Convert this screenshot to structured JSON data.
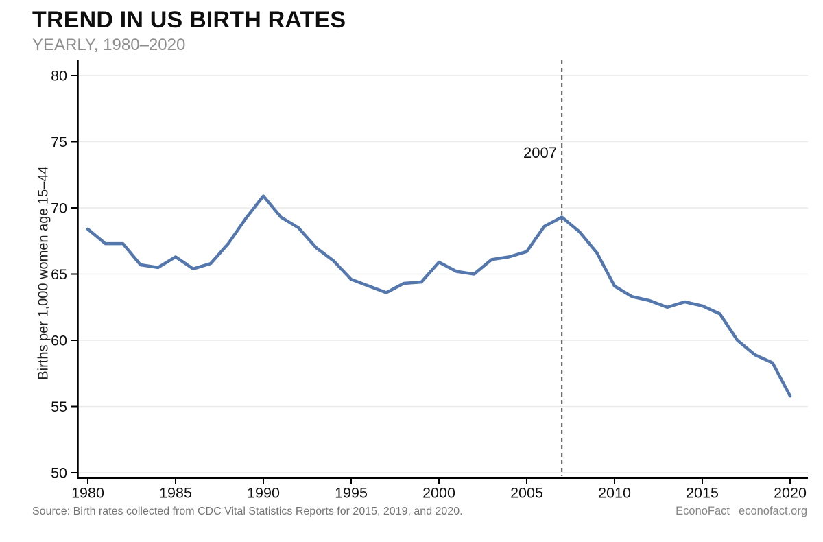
{
  "header": {
    "title": "TREND IN US BIRTH RATES",
    "subtitle": "YEARLY, 1980–2020"
  },
  "footer": {
    "source": "Source: Birth rates collected from CDC Vital Statistics Reports for 2015, 2019, and 2020.",
    "brand": "EconoFact",
    "url": "econofact.org"
  },
  "chart_data": {
    "type": "line",
    "title": "TREND IN US BIRTH RATES",
    "subtitle": "YEARLY, 1980–2020",
    "xlabel": "",
    "ylabel": "Births per 1,000 women age 15–44",
    "x": [
      1980,
      1981,
      1982,
      1983,
      1984,
      1985,
      1986,
      1987,
      1988,
      1989,
      1990,
      1991,
      1992,
      1993,
      1994,
      1995,
      1996,
      1997,
      1998,
      1999,
      2000,
      2001,
      2002,
      2003,
      2004,
      2005,
      2006,
      2007,
      2008,
      2009,
      2010,
      2011,
      2012,
      2013,
      2014,
      2015,
      2016,
      2017,
      2018,
      2019,
      2020
    ],
    "values": [
      68.4,
      67.3,
      67.3,
      65.7,
      65.5,
      66.3,
      65.4,
      65.8,
      67.3,
      69.2,
      70.9,
      69.3,
      68.5,
      67.0,
      66.0,
      64.6,
      64.1,
      63.6,
      64.3,
      64.4,
      65.9,
      65.2,
      65.0,
      66.1,
      66.3,
      66.7,
      68.6,
      69.3,
      68.2,
      66.6,
      64.1,
      63.3,
      63.0,
      62.5,
      62.9,
      62.6,
      62.0,
      60.0,
      58.9,
      58.3,
      55.8
    ],
    "series_name": "US birth rate per 1,000 women age 15–44",
    "ylim": [
      50,
      80
    ],
    "yticks": [
      80,
      75,
      70,
      65,
      60,
      55,
      50
    ],
    "xticks": [
      1980,
      1985,
      1990,
      1995,
      2000,
      2005,
      2010,
      2015,
      2020
    ],
    "grid": "horizontal",
    "legend": "none",
    "annotation": {
      "label": "2007",
      "year": 2007
    },
    "colors": {
      "line": "#5478ad",
      "grid": "#e9e9e9",
      "axis": "#000000",
      "dashed_line": "#4a4a4a",
      "tick_text": "#0f0f0f"
    }
  }
}
